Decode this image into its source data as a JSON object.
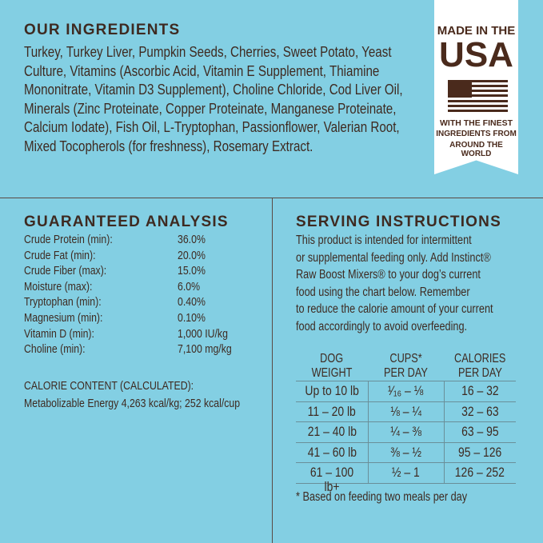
{
  "ingredients": {
    "title": "OUR INGREDIENTS",
    "lines": [
      "Turkey, Turkey Liver, Pumpkin Seeds, Cherries, Sweet Potato, Yeast",
      "Culture, Vitamins (Ascorbic Acid, Vitamin E Supplement, Thiamine",
      "Mononitrate, Vitamin D3 Supplement), Choline Chloride, Cod Liver Oil,",
      "Minerals (Zinc Proteinate, Copper Proteinate, Manganese Proteinate,",
      "Calcium Iodate), Fish Oil, L-Tryptophan, Passionflower, Valerian Root,",
      "Mixed Tocopherols (for freshness), Rosemary Extract."
    ]
  },
  "badge": {
    "line1": "MADE IN THE",
    "line2": "USA",
    "line3": "WITH THE FINEST",
    "line4": "INGREDIENTS FROM",
    "line5": "AROUND THE WORLD",
    "flag_icon": "us-flag-icon"
  },
  "analysis": {
    "title": "GUARANTEED ANALYSIS",
    "rows": [
      {
        "label": "Crude Protein (min):",
        "value": "36.0%"
      },
      {
        "label": "Crude Fat (min):",
        "value": "20.0%"
      },
      {
        "label": "Crude Fiber (max):",
        "value": "15.0%"
      },
      {
        "label": "Moisture (max):",
        "value": "6.0%"
      },
      {
        "label": "Tryptophan (min):",
        "value": "0.40%"
      },
      {
        "label": "Magnesium (min):",
        "value": "0.10%"
      },
      {
        "label": "Vitamin D (min):",
        "value": "1,000 IU/kg"
      },
      {
        "label": "Choline (min):",
        "value": "7,100 mg/kg"
      }
    ],
    "calorie_title": "CALORIE CONTENT (CALCULATED):",
    "calorie_value": "Metabolizable Energy 4,263 kcal/kg; 252 kcal/cup"
  },
  "serving": {
    "title": "SERVING INSTRUCTIONS",
    "lines": [
      "This product is intended for intermittent",
      "or supplemental feeding only. Add Instinct®",
      "Raw Boost Mixers® to your dog’s current",
      "food using the chart below. Remember",
      "to reduce the calorie amount of your current",
      "food accordingly to avoid overfeeding."
    ],
    "table": {
      "headers": [
        [
          "DOG",
          "WEIGHT"
        ],
        [
          "CUPS*",
          "PER DAY"
        ],
        [
          "CALORIES",
          "PER DAY"
        ]
      ],
      "rows": [
        [
          "Up to 10 lb",
          "¹⁄₁₆ – ⅛",
          "16 – 32"
        ],
        [
          "11 – 20 lb",
          "⅛ – ¼",
          "32 – 63"
        ],
        [
          "21 – 40 lb",
          "¼ – ⅜",
          "63 – 95"
        ],
        [
          "41 – 60 lb",
          "⅜ – ½",
          "95 – 126"
        ],
        [
          "61 – 100 lb+",
          "½ – 1",
          "126 – 252"
        ]
      ]
    },
    "footnote": "* Based on feeding two meals per day"
  },
  "colors": {
    "background": "#83cfe3",
    "text": "#3e2a21",
    "badge": "#ffffff"
  }
}
